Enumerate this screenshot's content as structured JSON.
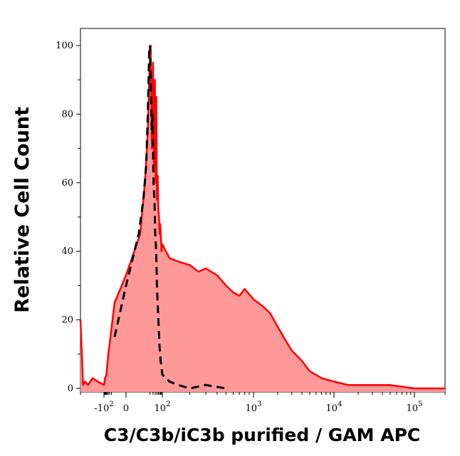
{
  "chart_data": {
    "type": "area",
    "title": "",
    "xlabel": "C3/C3b/iC3b purified / GAM APC",
    "ylabel": "Relative Cell Count",
    "x_scale": "biexponential",
    "xlim": [
      -200,
      200000
    ],
    "ylim": [
      0,
      105
    ],
    "y_ticks": [
      0,
      20,
      40,
      60,
      80,
      100
    ],
    "y_tick_labels": [
      "0",
      "20",
      "40",
      "60",
      "80",
      "100"
    ],
    "x_ticks": [
      {
        "value": -100,
        "base": "-10",
        "exp": "2"
      },
      {
        "value": 0,
        "base": "0",
        "exp": ""
      },
      {
        "value": 100,
        "base": "10",
        "exp": "2"
      },
      {
        "value": 1000,
        "base": "10",
        "exp": "3"
      },
      {
        "value": 10000,
        "base": "10",
        "exp": "4"
      },
      {
        "value": 100000,
        "base": "10",
        "exp": "5"
      }
    ],
    "grid": false,
    "series": [
      {
        "style": "filled",
        "color": "#ff0000",
        "fill": "#ff9999",
        "x": [
          -200,
          -185,
          -175,
          -160,
          -140,
          -120,
          -100,
          -80,
          -60,
          -40,
          -25,
          -10,
          0,
          5,
          10,
          15,
          18,
          22,
          26,
          30,
          34,
          38,
          42,
          46,
          50,
          55,
          60,
          65,
          70,
          75,
          80,
          90,
          100,
          120,
          150,
          200,
          250,
          300,
          400,
          500,
          600,
          700,
          800,
          1000,
          1300,
          1600,
          2000,
          2500,
          3000,
          4000,
          5000,
          7000,
          10000,
          15000,
          20000,
          50000,
          100000,
          200000
        ],
        "y": [
          20,
          1,
          2,
          1,
          3,
          2,
          1,
          3,
          4,
          10,
          15,
          25,
          33,
          45,
          60,
          75,
          90,
          100,
          70,
          95,
          65,
          90,
          60,
          85,
          55,
          62,
          52,
          50,
          45,
          48,
          46,
          40,
          42,
          38,
          37,
          36,
          34,
          35,
          33,
          30,
          28,
          27,
          29,
          26,
          24,
          22,
          18,
          14,
          11,
          8,
          5,
          3,
          2,
          1,
          1,
          1,
          0,
          0
        ]
      },
      {
        "style": "dashed",
        "color": "#000000",
        "x": [
          -10,
          0,
          4,
          8,
          12,
          15,
          18,
          20,
          22,
          25,
          28,
          32,
          36,
          40,
          45,
          50,
          60,
          70,
          80,
          100,
          120,
          150,
          200,
          300,
          500
        ],
        "y": [
          15,
          30,
          45,
          55,
          65,
          80,
          98,
          100,
          90,
          75,
          80,
          60,
          55,
          45,
          40,
          30,
          20,
          12,
          8,
          4,
          2,
          1,
          0,
          1,
          0
        ]
      }
    ]
  }
}
